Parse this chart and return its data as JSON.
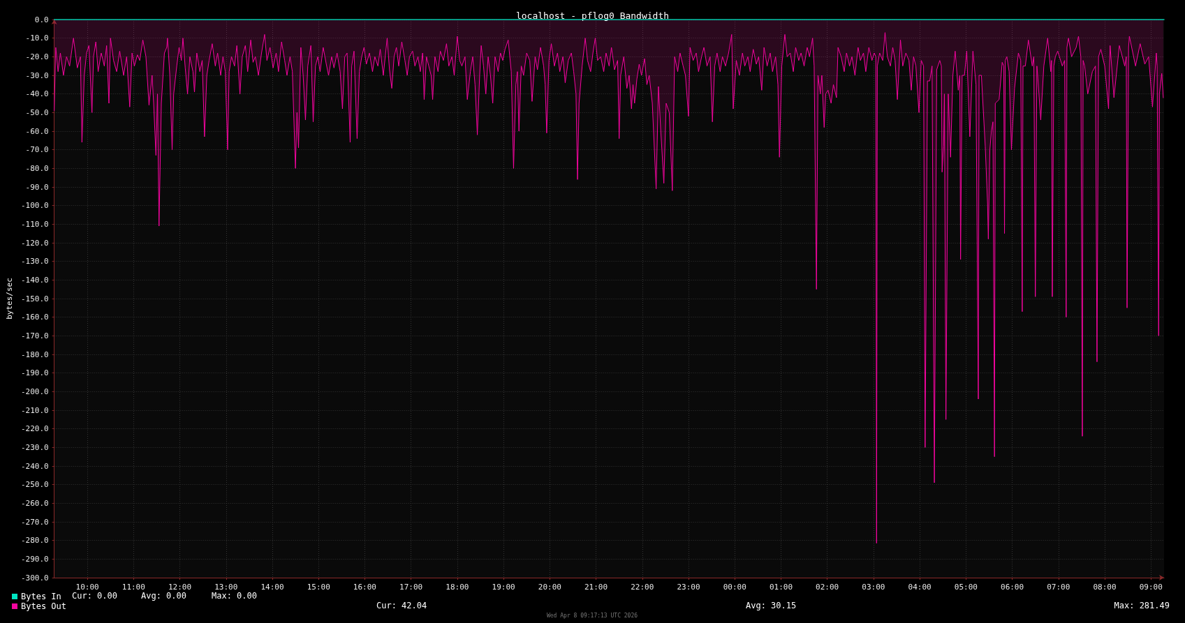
{
  "chart_data": {
    "type": "area",
    "title": "localhost - pflog0 Bandwidth",
    "ylabel": "bytes/sec",
    "xlim": [
      "2026-04-07T09:17",
      "2026-04-08T09:17"
    ],
    "xticks": [
      {
        "value": "2026-04-07T10:00",
        "label": "10:00"
      },
      {
        "value": "2026-04-07T11:00",
        "label": "11:00"
      },
      {
        "value": "2026-04-07T12:00",
        "label": "12:00"
      },
      {
        "value": "2026-04-07T13:00",
        "label": "13:00"
      },
      {
        "value": "2026-04-07T14:00",
        "label": "14:00"
      },
      {
        "value": "2026-04-07T15:00",
        "label": "15:00"
      },
      {
        "value": "2026-04-07T16:00",
        "label": "16:00"
      },
      {
        "value": "2026-04-07T17:00",
        "label": "17:00"
      },
      {
        "value": "2026-04-07T18:00",
        "label": "18:00"
      },
      {
        "value": "2026-04-07T19:00",
        "label": "19:00"
      },
      {
        "value": "2026-04-07T20:00",
        "label": "20:00"
      },
      {
        "value": "2026-04-07T21:00",
        "label": "21:00"
      },
      {
        "value": "2026-04-07T22:00",
        "label": "22:00"
      },
      {
        "value": "2026-04-07T23:00",
        "label": "23:00"
      },
      {
        "value": "2026-04-08T00:00",
        "label": "00:00"
      },
      {
        "value": "2026-04-08T01:00",
        "label": "01:00"
      },
      {
        "value": "2026-04-08T02:00",
        "label": "02:00"
      },
      {
        "value": "2026-04-08T03:00",
        "label": "03:00"
      },
      {
        "value": "2026-04-08T04:00",
        "label": "04:00"
      },
      {
        "value": "2026-04-08T05:00",
        "label": "05:00"
      },
      {
        "value": "2026-04-08T06:00",
        "label": "06:00"
      },
      {
        "value": "2026-04-08T07:00",
        "label": "07:00"
      },
      {
        "value": "2026-04-08T08:00",
        "label": "08:00"
      },
      {
        "value": "2026-04-08T09:00",
        "label": "09:00"
      }
    ],
    "ylim": [
      -300,
      0
    ],
    "yticks": [
      {
        "value": 0,
        "label": "0.0"
      },
      {
        "value": -10,
        "label": "-10.0"
      },
      {
        "value": -20,
        "label": "-20.0"
      },
      {
        "value": -30,
        "label": "-30.0"
      },
      {
        "value": -40,
        "label": "-40.0"
      },
      {
        "value": -50,
        "label": "-50.0"
      },
      {
        "value": -60,
        "label": "-60.0"
      },
      {
        "value": -70,
        "label": "-70.0"
      },
      {
        "value": -80,
        "label": "-80.0"
      },
      {
        "value": -90,
        "label": "-90.0"
      },
      {
        "value": -100,
        "label": "-100.0"
      },
      {
        "value": -110,
        "label": "-110.0"
      },
      {
        "value": -120,
        "label": "-120.0"
      },
      {
        "value": -130,
        "label": "-130.0"
      },
      {
        "value": -140,
        "label": "-140.0"
      },
      {
        "value": -150,
        "label": "-150.0"
      },
      {
        "value": -160,
        "label": "-160.0"
      },
      {
        "value": -170,
        "label": "-170.0"
      },
      {
        "value": -180,
        "label": "-180.0"
      },
      {
        "value": -190,
        "label": "-190.0"
      },
      {
        "value": -200,
        "label": "-200.0"
      },
      {
        "value": -210,
        "label": "-210.0"
      },
      {
        "value": -220,
        "label": "-220.0"
      },
      {
        "value": -230,
        "label": "-230.0"
      },
      {
        "value": -240,
        "label": "-240.0"
      },
      {
        "value": -250,
        "label": "-250.0"
      },
      {
        "value": -260,
        "label": "-260.0"
      },
      {
        "value": -270,
        "label": "-270.0"
      },
      {
        "value": -280,
        "label": "-280.0"
      },
      {
        "value": -290,
        "label": "-290.0"
      },
      {
        "value": -300,
        "label": "-300.0"
      }
    ],
    "grid": true,
    "legend": "bottom left",
    "marker": "none",
    "series": [
      {
        "name": "Bytes In",
        "type": "line",
        "color": "#00e6c3",
        "x": [
          "2026-04-07T09:17",
          "2026-04-08T09:17"
        ],
        "values": [
          0,
          0
        ]
      },
      {
        "name": "Bytes Out",
        "color": "#f5059f",
        "x": [
          "2026-04-07T09:17",
          "2026-04-07T09:19",
          "2026-04-07T09:22",
          "2026-04-07T09:25",
          "2026-04-07T09:29",
          "2026-04-07T09:33",
          "2026-04-07T09:37",
          "2026-04-07T09:42",
          "2026-04-07T09:47",
          "2026-04-07T09:51",
          "2026-04-07T09:53",
          "2026-04-07T09:56",
          "2026-04-07T09:59",
          "2026-04-07T10:02",
          "2026-04-07T10:06",
          "2026-04-07T10:08",
          "2026-04-07T10:11",
          "2026-04-07T10:14",
          "2026-04-07T10:18",
          "2026-04-07T10:22",
          "2026-04-07T10:25",
          "2026-04-07T10:28",
          "2026-04-07T10:30",
          "2026-04-07T10:34",
          "2026-04-07T10:38",
          "2026-04-07T10:42",
          "2026-04-07T10:47",
          "2026-04-07T10:51",
          "2026-04-07T10:55",
          "2026-04-07T10:58",
          "2026-04-07T11:01",
          "2026-04-07T11:05",
          "2026-04-07T11:08",
          "2026-04-07T11:12",
          "2026-04-07T11:16",
          "2026-04-07T11:20",
          "2026-04-07T11:24",
          "2026-04-07T11:26",
          "2026-04-07T11:29",
          "2026-04-07T11:31",
          "2026-04-07T11:33",
          "2026-04-07T11:36",
          "2026-04-07T11:40",
          "2026-04-07T11:43",
          "2026-04-07T11:44",
          "2026-04-07T11:47",
          "2026-04-07T11:50",
          "2026-04-07T11:52",
          "2026-04-07T11:56",
          "2026-04-07T11:59",
          "2026-04-07T12:02",
          "2026-04-07T12:04",
          "2026-04-07T12:07",
          "2026-04-07T12:10",
          "2026-04-07T12:13",
          "2026-04-07T12:17",
          "2026-04-07T12:19",
          "2026-04-07T12:22",
          "2026-04-07T12:26",
          "2026-04-07T12:29",
          "2026-04-07T12:32",
          "2026-04-07T12:35",
          "2026-04-07T12:38",
          "2026-04-07T12:42",
          "2026-04-07T12:46",
          "2026-04-07T12:49",
          "2026-04-07T12:53",
          "2026-04-07T12:56",
          "2026-04-07T12:59",
          "2026-04-07T13:02",
          "2026-04-07T13:04",
          "2026-04-07T13:07",
          "2026-04-07T13:11",
          "2026-04-07T13:14",
          "2026-04-07T13:18",
          "2026-04-07T13:21",
          "2026-04-07T13:25",
          "2026-04-07T13:28",
          "2026-04-07T13:32",
          "2026-04-07T13:35",
          "2026-04-07T13:38",
          "2026-04-07T13:42",
          "2026-04-07T13:46",
          "2026-04-07T13:50",
          "2026-04-07T13:53",
          "2026-04-07T13:57",
          "2026-04-07T14:01",
          "2026-04-07T14:05",
          "2026-04-07T14:08",
          "2026-04-07T14:12",
          "2026-04-07T14:16",
          "2026-04-07T14:19",
          "2026-04-07T14:23",
          "2026-04-07T14:26",
          "2026-04-07T14:30",
          "2026-04-07T14:32",
          "2026-04-07T14:34",
          "2026-04-07T14:37",
          "2026-04-07T14:40",
          "2026-04-07T14:43",
          "2026-04-07T14:46",
          "2026-04-07T14:50",
          "2026-04-07T14:53",
          "2026-04-07T14:56",
          "2026-04-07T14:59",
          "2026-04-07T15:02",
          "2026-04-07T15:06",
          "2026-04-07T15:10",
          "2026-04-07T15:13",
          "2026-04-07T15:17",
          "2026-04-07T15:20",
          "2026-04-07T15:24",
          "2026-04-07T15:28",
          "2026-04-07T15:31",
          "2026-04-07T15:34",
          "2026-04-07T15:37",
          "2026-04-07T15:41",
          "2026-04-07T15:43",
          "2026-04-07T15:46",
          "2026-04-07T15:50",
          "2026-04-07T15:53",
          "2026-04-07T15:56",
          "2026-04-07T15:59",
          "2026-04-07T16:02",
          "2026-04-07T16:06",
          "2026-04-07T16:10",
          "2026-04-07T16:13",
          "2026-04-07T16:17",
          "2026-04-07T16:20",
          "2026-04-07T16:24",
          "2026-04-07T16:29",
          "2026-04-07T16:32",
          "2026-04-07T16:35",
          "2026-04-07T16:38",
          "2026-04-07T16:41",
          "2026-04-07T16:44",
          "2026-04-07T16:48",
          "2026-04-07T16:52",
          "2026-04-07T16:55",
          "2026-04-07T16:58",
          "2026-04-07T17:02",
          "2026-04-07T17:05",
          "2026-04-07T17:09",
          "2026-04-07T17:12",
          "2026-04-07T17:15",
          "2026-04-07T17:17",
          "2026-04-07T17:20",
          "2026-04-07T17:23",
          "2026-04-07T17:26",
          "2026-04-07T17:28",
          "2026-04-07T17:31",
          "2026-04-07T17:35",
          "2026-04-07T17:38",
          "2026-04-07T17:42",
          "2026-04-07T17:46",
          "2026-04-07T17:49",
          "2026-04-07T17:53",
          "2026-04-07T17:56",
          "2026-04-07T18:00",
          "2026-04-07T18:03",
          "2026-04-07T18:06",
          "2026-04-07T18:10",
          "2026-04-07T18:13",
          "2026-04-07T18:17",
          "2026-04-07T18:20",
          "2026-04-07T18:23",
          "2026-04-07T18:26",
          "2026-04-07T18:29",
          "2026-04-07T18:31",
          "2026-04-07T18:34",
          "2026-04-07T18:37",
          "2026-04-07T18:40",
          "2026-04-07T18:43",
          "2026-04-07T18:46",
          "2026-04-07T18:49",
          "2026-04-07T18:53",
          "2026-04-07T18:56",
          "2026-04-07T18:59",
          "2026-04-07T19:02",
          "2026-04-07T19:06",
          "2026-04-07T19:10",
          "2026-04-07T19:13",
          "2026-04-07T19:16",
          "2026-04-07T19:18",
          "2026-04-07T19:20",
          "2026-04-07T19:23",
          "2026-04-07T19:26",
          "2026-04-07T19:30",
          "2026-04-07T19:34",
          "2026-04-07T19:37",
          "2026-04-07T19:41",
          "2026-04-07T19:44",
          "2026-04-07T19:48",
          "2026-04-07T19:52",
          "2026-04-07T19:54",
          "2026-04-07T19:56",
          "2026-04-07T19:59",
          "2026-04-07T20:02",
          "2026-04-07T20:06",
          "2026-04-07T20:10",
          "2026-04-07T20:13",
          "2026-04-07T20:17",
          "2026-04-07T20:20",
          "2026-04-07T20:24",
          "2026-04-07T20:28",
          "2026-04-07T20:31",
          "2026-04-07T20:34",
          "2026-04-07T20:36",
          "2026-04-07T20:38",
          "2026-04-07T20:42",
          "2026-04-07T20:46",
          "2026-04-07T20:49",
          "2026-04-07T20:53",
          "2026-04-07T20:56",
          "2026-04-07T20:59",
          "2026-04-07T21:02",
          "2026-04-07T21:06",
          "2026-04-07T21:10",
          "2026-04-07T21:13",
          "2026-04-07T21:17",
          "2026-04-07T21:20",
          "2026-04-07T21:24",
          "2026-04-07T21:28",
          "2026-04-07T21:30",
          "2026-04-07T21:32",
          "2026-04-07T21:36",
          "2026-04-07T21:40",
          "2026-04-07T21:43",
          "2026-04-07T21:46",
          "2026-04-07T21:48",
          "2026-04-07T21:50",
          "2026-04-07T21:53",
          "2026-04-07T21:56",
          "2026-04-07T21:59",
          "2026-04-07T22:03",
          "2026-04-07T22:06",
          "2026-04-07T22:09",
          "2026-04-07T22:13",
          "2026-04-07T22:18",
          "2026-04-07T22:21",
          "2026-04-07T22:24",
          "2026-04-07T22:28",
          "2026-04-07T22:31",
          "2026-04-07T22:35",
          "2026-04-07T22:39",
          "2026-04-07T22:42",
          "2026-04-07T22:46",
          "2026-04-07T22:49",
          "2026-04-07T22:53",
          "2026-04-07T22:56",
          "2026-04-07T23:00",
          "2026-04-07T23:02",
          "2026-04-07T23:06",
          "2026-04-07T23:10",
          "2026-04-07T23:13",
          "2026-04-07T23:17",
          "2026-04-07T23:20",
          "2026-04-07T23:24",
          "2026-04-07T23:28",
          "2026-04-07T23:31",
          "2026-04-07T23:34",
          "2026-04-07T23:37",
          "2026-04-07T23:41",
          "2026-04-07T23:44",
          "2026-04-07T23:48",
          "2026-04-07T23:52",
          "2026-04-07T23:56",
          "2026-04-07T23:58",
          "2026-04-08T00:02",
          "2026-04-08T00:06",
          "2026-04-08T00:10",
          "2026-04-08T00:13",
          "2026-04-08T00:17",
          "2026-04-08T00:20",
          "2026-04-08T00:24",
          "2026-04-08T00:28",
          "2026-04-08T00:31",
          "2026-04-08T00:35",
          "2026-04-08T00:38",
          "2026-04-08T00:42",
          "2026-04-08T00:46",
          "2026-04-08T00:49",
          "2026-04-08T00:53",
          "2026-04-08T00:56",
          "2026-04-08T00:58",
          "2026-04-08T01:01",
          "2026-04-08T01:05",
          "2026-04-08T01:08",
          "2026-04-08T01:12",
          "2026-04-08T01:16",
          "2026-04-08T01:19",
          "2026-04-08T01:23",
          "2026-04-08T01:26",
          "2026-04-08T01:30",
          "2026-04-08T01:34",
          "2026-04-08T01:37",
          "2026-04-08T01:41",
          "2026-04-08T01:43",
          "2026-04-08T01:46",
          "2026-04-08T01:48",
          "2026-04-08T01:51",
          "2026-04-08T01:53",
          "2026-04-08T01:56",
          "2026-04-08T01:58",
          "2026-04-08T02:01",
          "2026-04-08T02:05",
          "2026-04-08T02:08",
          "2026-04-08T02:12",
          "2026-04-08T02:14",
          "2026-04-08T02:18",
          "2026-04-08T02:22",
          "2026-04-08T02:25",
          "2026-04-08T02:29",
          "2026-04-08T02:32",
          "2026-04-08T02:36",
          "2026-04-08T02:40",
          "2026-04-08T02:43",
          "2026-04-08T02:47",
          "2026-04-08T02:50",
          "2026-04-08T02:54",
          "2026-04-08T02:58",
          "2026-04-08T03:01",
          "2026-04-08T03:03",
          "2026-04-08T03:04",
          "2026-04-08T03:05",
          "2026-04-08T03:08",
          "2026-04-08T03:12",
          "2026-04-08T03:15",
          "2026-04-08T03:18",
          "2026-04-08T03:22",
          "2026-04-08T03:25",
          "2026-04-08T03:28",
          "2026-04-08T03:31",
          "2026-04-08T03:35",
          "2026-04-08T03:38",
          "2026-04-08T03:42",
          "2026-04-08T03:46",
          "2026-04-08T03:49",
          "2026-04-08T03:52",
          "2026-04-08T03:55",
          "2026-04-08T03:59",
          "2026-04-08T04:02",
          "2026-04-08T04:05",
          "2026-04-08T04:07",
          "2026-04-08T04:10",
          "2026-04-08T04:13",
          "2026-04-08T04:16",
          "2026-04-08T04:19",
          "2026-04-08T04:22",
          "2026-04-08T04:26",
          "2026-04-08T04:28",
          "2026-04-08T04:29",
          "2026-04-08T04:31",
          "2026-04-08T04:32",
          "2026-04-08T04:34",
          "2026-04-08T04:37",
          "2026-04-08T04:40",
          "2026-04-08T04:43",
          "2026-04-08T04:46",
          "2026-04-08T04:50",
          "2026-04-08T04:52",
          "2026-04-08T04:53",
          "2026-04-08T04:55",
          "2026-04-08T04:58",
          "2026-04-08T05:01",
          "2026-04-08T05:05",
          "2026-04-08T05:09",
          "2026-04-08T05:13",
          "2026-04-08T05:16",
          "2026-04-08T05:17",
          "2026-04-08T05:20",
          "2026-04-08T05:25",
          "2026-04-08T05:28",
          "2026-04-08T05:29",
          "2026-04-08T05:31",
          "2026-04-08T05:33",
          "2026-04-08T05:35",
          "2026-04-08T05:37",
          "2026-04-08T05:38",
          "2026-04-08T05:43",
          "2026-04-08T05:47",
          "2026-04-08T05:49",
          "2026-04-08T05:50",
          "2026-04-08T05:51",
          "2026-04-08T05:53",
          "2026-04-08T05:56",
          "2026-04-08T05:59",
          "2026-04-08T06:03",
          "2026-04-08T06:08",
          "2026-04-08T06:11",
          "2026-04-08T06:13",
          "2026-04-08T06:14",
          "2026-04-08T06:17",
          "2026-04-08T06:21",
          "2026-04-08T06:26",
          "2026-04-08T06:28",
          "2026-04-08T06:30",
          "2026-04-08T06:32",
          "2026-04-08T06:33",
          "2026-04-08T06:37",
          "2026-04-08T06:41",
          "2026-04-08T06:46",
          "2026-04-08T06:50",
          "2026-04-08T06:51",
          "2026-04-08T06:52",
          "2026-04-08T06:54",
          "2026-04-08T06:56",
          "2026-04-08T06:59",
          "2026-04-08T07:05",
          "2026-04-08T07:08",
          "2026-04-08T07:10",
          "2026-04-08T07:11",
          "2026-04-08T07:13",
          "2026-04-08T07:17",
          "2026-04-08T07:23",
          "2026-04-08T07:26",
          "2026-04-08T07:29",
          "2026-04-08T07:31",
          "2026-04-08T07:32",
          "2026-04-08T07:34",
          "2026-04-08T07:38",
          "2026-04-08T07:44",
          "2026-04-08T07:48",
          "2026-04-08T07:50",
          "2026-04-08T07:52",
          "2026-04-08T07:55",
          "2026-04-08T08:00",
          "2026-04-08T08:05",
          "2026-04-08T08:07",
          "2026-04-08T08:12",
          "2026-04-08T08:19",
          "2026-04-08T08:26",
          "2026-04-08T08:28",
          "2026-04-08T08:29",
          "2026-04-08T08:31",
          "2026-04-08T08:32",
          "2026-04-08T08:40",
          "2026-04-08T08:46",
          "2026-04-08T08:52",
          "2026-04-08T08:57",
          "2026-04-08T09:02",
          "2026-04-08T09:07",
          "2026-04-08T09:08",
          "2026-04-08T09:10",
          "2026-04-08T09:11",
          "2026-04-08T09:14",
          "2026-04-08T09:16"
        ],
        "values": [
          -49,
          -15,
          -28,
          -18,
          -30,
          -20,
          -25,
          -10,
          -26,
          -20,
          -66,
          -30,
          -18,
          -14,
          -50,
          -20,
          -12,
          -28,
          -18,
          -25,
          -14,
          -45,
          -10,
          -22,
          -28,
          -17,
          -30,
          -20,
          -47,
          -18,
          -25,
          -19,
          -22,
          -11,
          -20,
          -46,
          -30,
          -45,
          -73,
          -40,
          -111,
          -45,
          -18,
          -15,
          -10,
          -30,
          -70,
          -40,
          -25,
          -15,
          -22,
          -10,
          -26,
          -40,
          -20,
          -28,
          -39,
          -18,
          -28,
          -22,
          -63,
          -30,
          -22,
          -13,
          -25,
          -18,
          -30,
          -20,
          -28,
          -70,
          -28,
          -20,
          -25,
          -14,
          -40,
          -20,
          -14,
          -28,
          -11,
          -23,
          -20,
          -30,
          -18,
          -8,
          -22,
          -15,
          -26,
          -18,
          -28,
          -12,
          -22,
          -30,
          -20,
          -28,
          -80,
          -50,
          -69,
          -15,
          -30,
          -54,
          -25,
          -14,
          -55,
          -25,
          -20,
          -28,
          -15,
          -24,
          -30,
          -20,
          -26,
          -18,
          -28,
          -48,
          -20,
          -18,
          -66,
          -25,
          -17,
          -64,
          -28,
          -20,
          -15,
          -24,
          -18,
          -28,
          -20,
          -25,
          -16,
          -30,
          -10,
          -27,
          -37,
          -20,
          -15,
          -25,
          -12,
          -22,
          -30,
          -20,
          -17,
          -25,
          -20,
          -28,
          -18,
          -43,
          -20,
          -25,
          -30,
          -43,
          -20,
          -28,
          -17,
          -22,
          -13,
          -25,
          -20,
          -30,
          -9,
          -22,
          -25,
          -20,
          -43,
          -28,
          -20,
          -35,
          -62,
          -30,
          -14,
          -25,
          -40,
          -20,
          -30,
          -45,
          -20,
          -28,
          -18,
          -22,
          -16,
          -11,
          -28,
          -80,
          -35,
          -28,
          -60,
          -25,
          -30,
          -18,
          -22,
          -44,
          -20,
          -27,
          -15,
          -25,
          -35,
          -61,
          -22,
          -13,
          -25,
          -18,
          -28,
          -20,
          -34,
          -22,
          -18,
          -28,
          -40,
          -86,
          -45,
          -25,
          -10,
          -22,
          -28,
          -18,
          -10,
          -22,
          -20,
          -28,
          -18,
          -25,
          -15,
          -27,
          -22,
          -64,
          -30,
          -20,
          -37,
          -30,
          -48,
          -35,
          -45,
          -32,
          -24,
          -30,
          -21,
          -35,
          -30,
          -45,
          -91,
          -36,
          -60,
          -88,
          -45,
          -50,
          -92,
          -20,
          -28,
          -18,
          -25,
          -30,
          -52,
          -15,
          -22,
          -18,
          -28,
          -20,
          -15,
          -25,
          -20,
          -55,
          -25,
          -18,
          -28,
          -20,
          -25,
          -18,
          -8,
          -48,
          -22,
          -30,
          -18,
          -25,
          -20,
          -28,
          -16,
          -24,
          -20,
          -38,
          -15,
          -25,
          -18,
          -28,
          -20,
          -35,
          -74,
          -25,
          -8,
          -20,
          -18,
          -28,
          -15,
          -22,
          -18,
          -25,
          -15,
          -20,
          -10,
          -25,
          -145,
          -30,
          -40,
          -30,
          -58,
          -40,
          -38,
          -45,
          -35,
          -42,
          -15,
          -20,
          -28,
          -18,
          -25,
          -20,
          -30,
          -15,
          -22,
          -18,
          -28,
          -15,
          -22,
          -18,
          -20,
          -281.49,
          -25,
          -18,
          -22,
          -7,
          -20,
          -25,
          -15,
          -22,
          -43,
          -11,
          -25,
          -18,
          -22,
          -38,
          -20,
          -25,
          -50,
          -22,
          -25,
          -230,
          -33,
          -33,
          -25,
          -249,
          -27,
          -22,
          -25,
          -82,
          -68,
          -40,
          -215,
          -40,
          -74,
          -30,
          -17,
          -38,
          -30,
          -129,
          -30,
          -30,
          -17,
          -63,
          -17,
          -35,
          -204,
          -30,
          -30,
          -68,
          -99,
          -118,
          -70,
          -60,
          -55,
          -235,
          -45,
          -43,
          -23,
          -25,
          -115,
          -22,
          -20,
          -28,
          -70,
          -37,
          -18,
          -22,
          -157,
          -25,
          -25,
          -11,
          -25,
          -20,
          -149,
          -25,
          -30,
          -54,
          -25,
          -10,
          -28,
          -22,
          -149,
          -25,
          -20,
          -17,
          -25,
          -22,
          -160,
          -15,
          -10,
          -20,
          -15,
          -9,
          -20,
          -224,
          -22,
          -25,
          -40,
          -28,
          -25,
          -184,
          -20,
          -16,
          -25,
          -48,
          -14,
          -42,
          -14,
          -25,
          -20,
          -155,
          -15,
          -9,
          -25,
          -13,
          -24,
          -20,
          -47,
          -18,
          -25,
          -170,
          -40,
          -29,
          -42.04
        ]
      }
    ],
    "annotations": [
      "Cur: 0.00",
      "Avg: 0.00",
      "Max: 0.00",
      "Cur: 42.04",
      "Avg: 30.15",
      "Max: 281.49",
      "Wed Apr 8 09:17:13 UTC 2026"
    ]
  }
}
